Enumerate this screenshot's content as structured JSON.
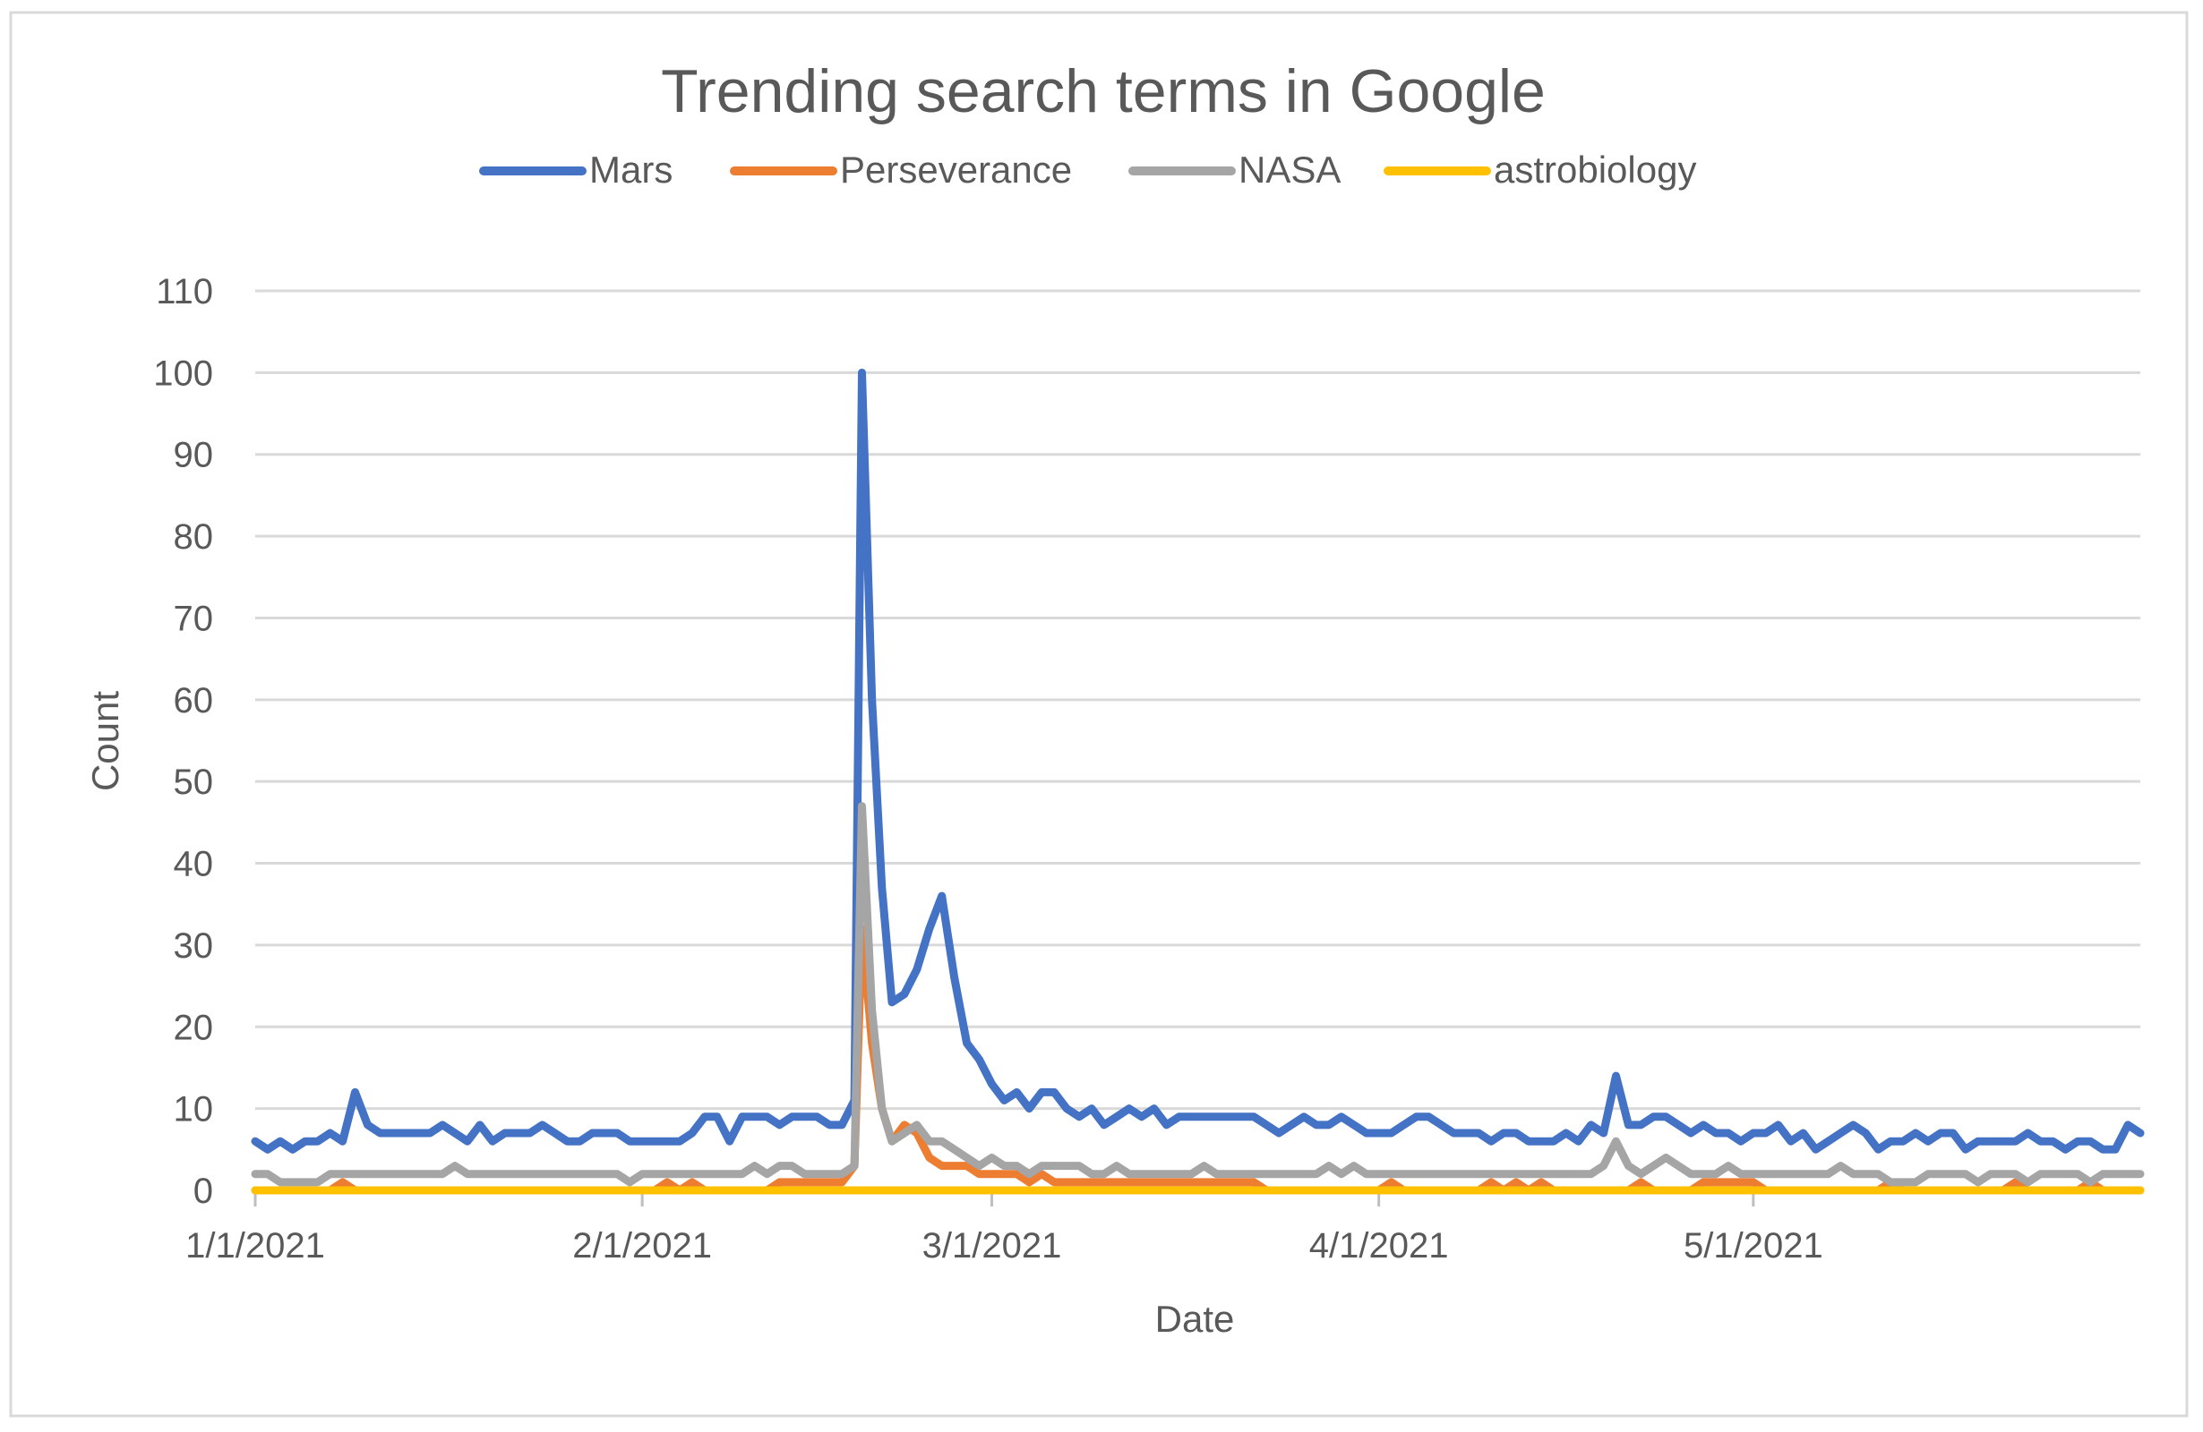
{
  "chart_data": {
    "type": "line",
    "title": "Trending search terms in Google",
    "xlabel": "Date",
    "ylabel": "Count",
    "ylim": [
      0,
      110
    ],
    "yticks": [
      0,
      10,
      20,
      30,
      40,
      50,
      60,
      70,
      80,
      90,
      100,
      110
    ],
    "grid": true,
    "legend_position": "top",
    "x_start_date": "1/1/2021",
    "x_day_count": 152,
    "xticks": [
      {
        "label": "1/1/2021",
        "day": 0
      },
      {
        "label": "2/1/2021",
        "day": 31
      },
      {
        "label": "3/1/2021",
        "day": 59
      },
      {
        "label": "4/1/2021",
        "day": 90
      },
      {
        "label": "5/1/2021",
        "day": 120
      }
    ],
    "series": [
      {
        "name": "Mars",
        "color": "#4472C4",
        "points": [
          [
            0,
            6
          ],
          [
            1,
            5
          ],
          [
            2,
            6
          ],
          [
            3,
            5
          ],
          [
            4,
            6
          ],
          [
            5,
            6
          ],
          [
            6,
            7
          ],
          [
            7,
            6
          ],
          [
            8,
            12
          ],
          [
            9,
            8
          ],
          [
            10,
            7
          ],
          [
            12,
            7
          ],
          [
            14,
            7
          ],
          [
            15,
            8
          ],
          [
            16,
            7
          ],
          [
            17,
            6
          ],
          [
            18,
            8
          ],
          [
            19,
            6
          ],
          [
            20,
            7
          ],
          [
            22,
            7
          ],
          [
            23,
            8
          ],
          [
            24,
            7
          ],
          [
            25,
            6
          ],
          [
            26,
            6
          ],
          [
            27,
            7
          ],
          [
            29,
            7
          ],
          [
            30,
            6
          ],
          [
            34,
            6
          ],
          [
            35,
            7
          ],
          [
            36,
            9
          ],
          [
            37,
            9
          ],
          [
            38,
            6
          ],
          [
            39,
            9
          ],
          [
            41,
            9
          ],
          [
            42,
            8
          ],
          [
            43,
            9
          ],
          [
            45,
            9
          ],
          [
            46,
            8
          ],
          [
            47,
            8
          ],
          [
            48,
            11
          ],
          [
            48.6,
            100
          ],
          [
            49.4,
            60
          ],
          [
            50.2,
            37
          ],
          [
            51,
            23
          ],
          [
            52,
            24
          ],
          [
            53,
            27
          ],
          [
            54,
            32
          ],
          [
            55,
            36
          ],
          [
            56,
            26
          ],
          [
            57,
            18
          ],
          [
            58,
            16
          ],
          [
            59,
            13
          ],
          [
            60,
            11
          ],
          [
            61,
            12
          ],
          [
            62,
            10
          ],
          [
            63,
            12
          ],
          [
            64,
            12
          ],
          [
            65,
            10
          ],
          [
            66,
            9
          ],
          [
            67,
            10
          ],
          [
            68,
            8
          ],
          [
            69,
            9
          ],
          [
            70,
            10
          ],
          [
            71,
            9
          ],
          [
            72,
            10
          ],
          [
            73,
            8
          ],
          [
            74,
            9
          ],
          [
            80,
            9
          ],
          [
            81,
            8
          ],
          [
            82,
            7
          ],
          [
            83,
            8
          ],
          [
            84,
            9
          ],
          [
            85,
            8
          ],
          [
            86,
            8
          ],
          [
            87,
            9
          ],
          [
            88,
            8
          ],
          [
            89,
            7
          ],
          [
            91,
            7
          ],
          [
            92,
            8
          ],
          [
            93,
            9
          ],
          [
            94,
            9
          ],
          [
            95,
            8
          ],
          [
            96,
            7
          ],
          [
            98,
            7
          ],
          [
            99,
            6
          ],
          [
            100,
            7
          ],
          [
            101,
            7
          ],
          [
            102,
            6
          ],
          [
            104,
            6
          ],
          [
            105,
            7
          ],
          [
            106,
            6
          ],
          [
            107,
            8
          ],
          [
            108,
            7
          ],
          [
            109,
            14
          ],
          [
            110,
            8
          ],
          [
            111,
            8
          ],
          [
            112,
            9
          ],
          [
            113,
            9
          ],
          [
            114,
            8
          ],
          [
            115,
            7
          ],
          [
            116,
            8
          ],
          [
            117,
            7
          ],
          [
            118,
            7
          ],
          [
            119,
            6
          ],
          [
            120,
            7
          ],
          [
            121,
            7
          ],
          [
            122,
            8
          ],
          [
            123,
            6
          ],
          [
            124,
            7
          ],
          [
            125,
            5
          ],
          [
            126,
            6
          ],
          [
            127,
            7
          ],
          [
            128,
            8
          ],
          [
            129,
            7
          ],
          [
            130,
            5
          ],
          [
            131,
            6
          ],
          [
            132,
            6
          ],
          [
            133,
            7
          ],
          [
            134,
            6
          ],
          [
            135,
            7
          ],
          [
            136,
            7
          ],
          [
            137,
            5
          ],
          [
            138,
            6
          ],
          [
            141,
            6
          ],
          [
            142,
            7
          ],
          [
            143,
            6
          ],
          [
            144,
            6
          ],
          [
            145,
            5
          ],
          [
            146,
            6
          ],
          [
            147,
            6
          ],
          [
            148,
            5
          ],
          [
            149,
            5
          ],
          [
            150,
            8
          ],
          [
            151,
            7
          ]
        ]
      },
      {
        "name": "Perseverance",
        "color": "#ED7D31",
        "points": [
          [
            0,
            0
          ],
          [
            6,
            0
          ],
          [
            7,
            1
          ],
          [
            8,
            0
          ],
          [
            32,
            0
          ],
          [
            33,
            1
          ],
          [
            34,
            0
          ],
          [
            35,
            1
          ],
          [
            36,
            0
          ],
          [
            41,
            0
          ],
          [
            42,
            1
          ],
          [
            47,
            1
          ],
          [
            48,
            3
          ],
          [
            48.6,
            32
          ],
          [
            49.4,
            18
          ],
          [
            50.2,
            10
          ],
          [
            51,
            6
          ],
          [
            52,
            8
          ],
          [
            53,
            7
          ],
          [
            54,
            4
          ],
          [
            55,
            3
          ],
          [
            57,
            3
          ],
          [
            58,
            2
          ],
          [
            60,
            2
          ],
          [
            61,
            2
          ],
          [
            62,
            1
          ],
          [
            63,
            2
          ],
          [
            64,
            1
          ],
          [
            80,
            1
          ],
          [
            81,
            0
          ],
          [
            90,
            0
          ],
          [
            91,
            1
          ],
          [
            92,
            0
          ],
          [
            98,
            0
          ],
          [
            99,
            1
          ],
          [
            100,
            0
          ],
          [
            101,
            1
          ],
          [
            102,
            0
          ],
          [
            103,
            1
          ],
          [
            104,
            0
          ],
          [
            110,
            0
          ],
          [
            111,
            1
          ],
          [
            112,
            0
          ],
          [
            115,
            0
          ],
          [
            116,
            1
          ],
          [
            120,
            1
          ],
          [
            121,
            0
          ],
          [
            130,
            0
          ],
          [
            131,
            1
          ],
          [
            132,
            0
          ],
          [
            140,
            0
          ],
          [
            141,
            1
          ],
          [
            142,
            0
          ],
          [
            146,
            0
          ],
          [
            147,
            1
          ],
          [
            148,
            0
          ],
          [
            151,
            0
          ]
        ]
      },
      {
        "name": "NASA",
        "color": "#A5A5A5",
        "points": [
          [
            0,
            2
          ],
          [
            1,
            2
          ],
          [
            2,
            1
          ],
          [
            5,
            1
          ],
          [
            6,
            2
          ],
          [
            15,
            2
          ],
          [
            16,
            3
          ],
          [
            17,
            2
          ],
          [
            29,
            2
          ],
          [
            30,
            1
          ],
          [
            31,
            2
          ],
          [
            39,
            2
          ],
          [
            40,
            3
          ],
          [
            41,
            2
          ],
          [
            42,
            3
          ],
          [
            43,
            3
          ],
          [
            44,
            2
          ],
          [
            47,
            2
          ],
          [
            48,
            3
          ],
          [
            48.6,
            47
          ],
          [
            49.4,
            22
          ],
          [
            50.2,
            10
          ],
          [
            51,
            6
          ],
          [
            52,
            7
          ],
          [
            53,
            8
          ],
          [
            54,
            6
          ],
          [
            55,
            6
          ],
          [
            56,
            5
          ],
          [
            57,
            4
          ],
          [
            58,
            3
          ],
          [
            59,
            4
          ],
          [
            60,
            3
          ],
          [
            61,
            3
          ],
          [
            62,
            2
          ],
          [
            63,
            3
          ],
          [
            66,
            3
          ],
          [
            67,
            2
          ],
          [
            68,
            2
          ],
          [
            69,
            3
          ],
          [
            70,
            2
          ],
          [
            75,
            2
          ],
          [
            76,
            3
          ],
          [
            77,
            2
          ],
          [
            85,
            2
          ],
          [
            86,
            3
          ],
          [
            87,
            2
          ],
          [
            88,
            3
          ],
          [
            89,
            2
          ],
          [
            106,
            2
          ],
          [
            107,
            2
          ],
          [
            108,
            3
          ],
          [
            109,
            6
          ],
          [
            110,
            3
          ],
          [
            111,
            2
          ],
          [
            112,
            3
          ],
          [
            113,
            4
          ],
          [
            114,
            3
          ],
          [
            115,
            2
          ],
          [
            117,
            2
          ],
          [
            118,
            3
          ],
          [
            119,
            2
          ],
          [
            126,
            2
          ],
          [
            127,
            3
          ],
          [
            128,
            2
          ],
          [
            130,
            2
          ],
          [
            131,
            1
          ],
          [
            133,
            1
          ],
          [
            134,
            2
          ],
          [
            137,
            2
          ],
          [
            138,
            1
          ],
          [
            139,
            2
          ],
          [
            141,
            2
          ],
          [
            142,
            1
          ],
          [
            143,
            2
          ],
          [
            146,
            2
          ],
          [
            147,
            1
          ],
          [
            148,
            2
          ],
          [
            151,
            2
          ]
        ]
      },
      {
        "name": "astrobiology",
        "color": "#FFC000",
        "points": [
          [
            0,
            0
          ],
          [
            151,
            0
          ]
        ]
      }
    ]
  }
}
